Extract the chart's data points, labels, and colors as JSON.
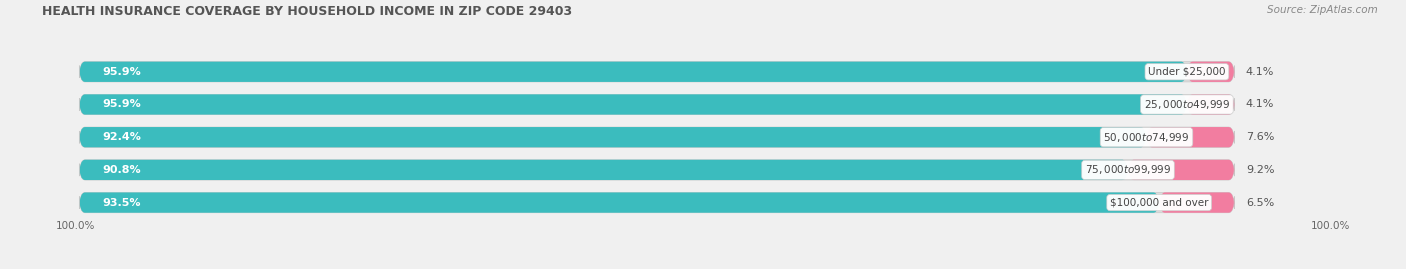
{
  "title": "HEALTH INSURANCE COVERAGE BY HOUSEHOLD INCOME IN ZIP CODE 29403",
  "source": "Source: ZipAtlas.com",
  "categories": [
    "Under $25,000",
    "$25,000 to $49,999",
    "$50,000 to $74,999",
    "$75,000 to $99,999",
    "$100,000 and over"
  ],
  "with_coverage": [
    95.9,
    95.9,
    92.4,
    90.8,
    93.5
  ],
  "without_coverage": [
    4.1,
    4.1,
    7.6,
    9.2,
    6.5
  ],
  "color_with": "#3BBCBE",
  "color_without": "#F27DA0",
  "bg_color": "#F0F0F0",
  "bar_bg_color": "#DCDCDC",
  "figsize": [
    14.06,
    2.69
  ],
  "dpi": 100
}
